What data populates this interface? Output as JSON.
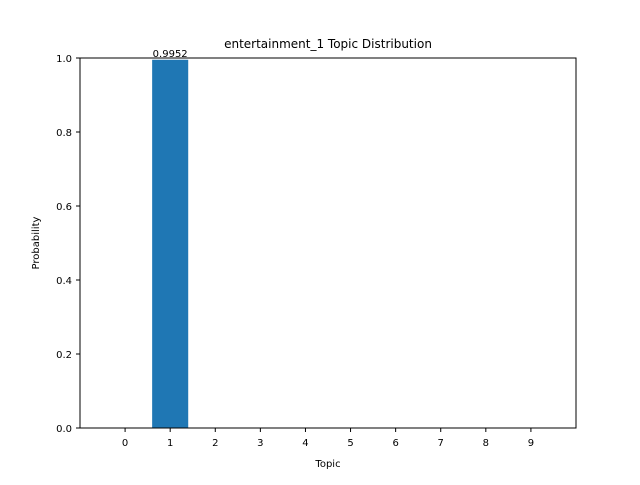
{
  "chart_data": {
    "type": "bar",
    "title": "entertainment_1 Topic Distribution",
    "xlabel": "Topic",
    "ylabel": "Probability",
    "categories": [
      "0",
      "1",
      "2",
      "3",
      "4",
      "5",
      "6",
      "7",
      "8",
      "9"
    ],
    "values": [
      0,
      0.9952,
      0,
      0,
      0,
      0,
      0,
      0,
      0,
      0
    ],
    "data_labels": [
      {
        "category": "1",
        "text": "0.9952"
      }
    ],
    "ylim": [
      0,
      1.0
    ],
    "yticks": [
      "0.0",
      "0.2",
      "0.4",
      "0.6",
      "0.8",
      "1.0"
    ],
    "bar_color": "#1f77b4",
    "grid": false,
    "legend": "none"
  }
}
